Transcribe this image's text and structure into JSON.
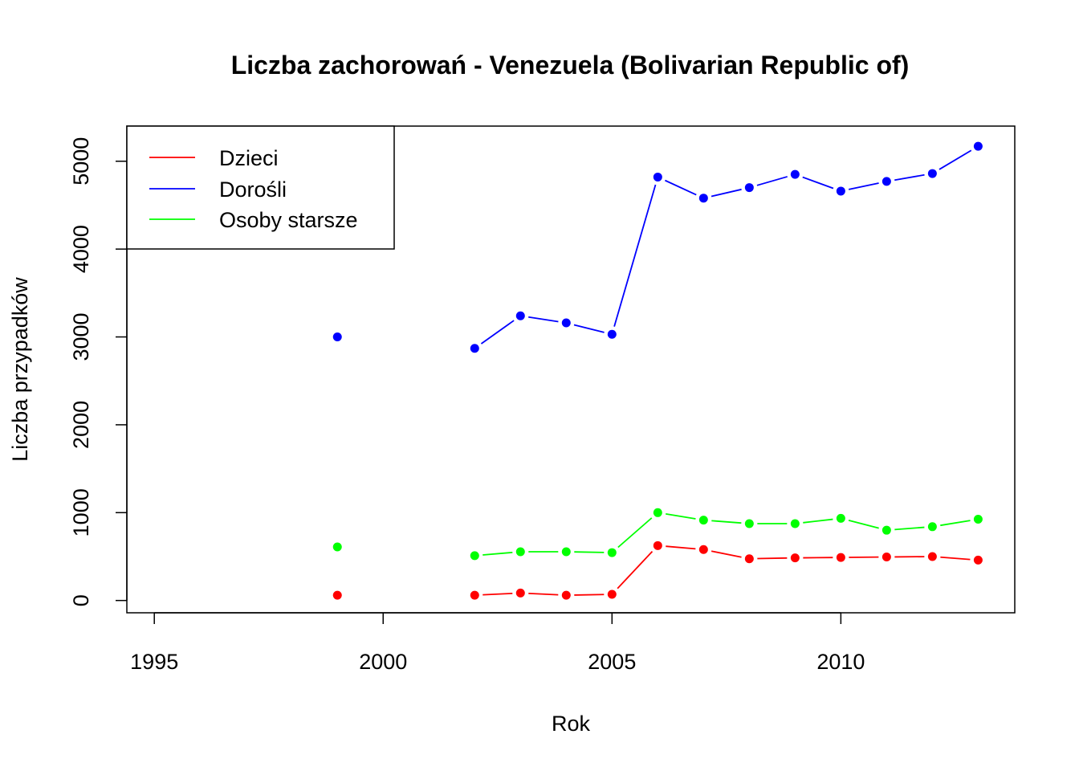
{
  "chart_data": {
    "type": "line",
    "title": "Liczba zachorowań -  Venezuela (Bolivarian Republic of)",
    "xlabel": "Rok",
    "ylabel": "Liczba przypadków",
    "xlim": [
      1994.4,
      2013.8
    ],
    "ylim": [
      -140,
      5400
    ],
    "x_ticks": [
      1995,
      2000,
      2005,
      2010
    ],
    "y_ticks": [
      0,
      1000,
      2000,
      3000,
      4000,
      5000
    ],
    "legend_position": "top-left",
    "grid": false,
    "x": [
      1999,
      2000,
      2001,
      2002,
      2003,
      2004,
      2005,
      2006,
      2007,
      2008,
      2009,
      2010,
      2011,
      2012,
      2013
    ],
    "series": [
      {
        "name": "Dzieci",
        "color": "#ff0000",
        "values": [
          60,
          null,
          null,
          60,
          85,
          60,
          70,
          625,
          580,
          475,
          485,
          490,
          495,
          500,
          460
        ]
      },
      {
        "name": "Dorośli",
        "color": "#0000ff",
        "values": [
          3000,
          null,
          null,
          2870,
          3240,
          3160,
          3030,
          4820,
          4580,
          4700,
          4850,
          4660,
          4770,
          4860,
          5170
        ]
      },
      {
        "name": "Osoby starsze",
        "color": "#00ff00",
        "values": [
          610,
          null,
          null,
          510,
          555,
          555,
          545,
          1000,
          915,
          875,
          875,
          935,
          800,
          840,
          925
        ]
      }
    ]
  }
}
